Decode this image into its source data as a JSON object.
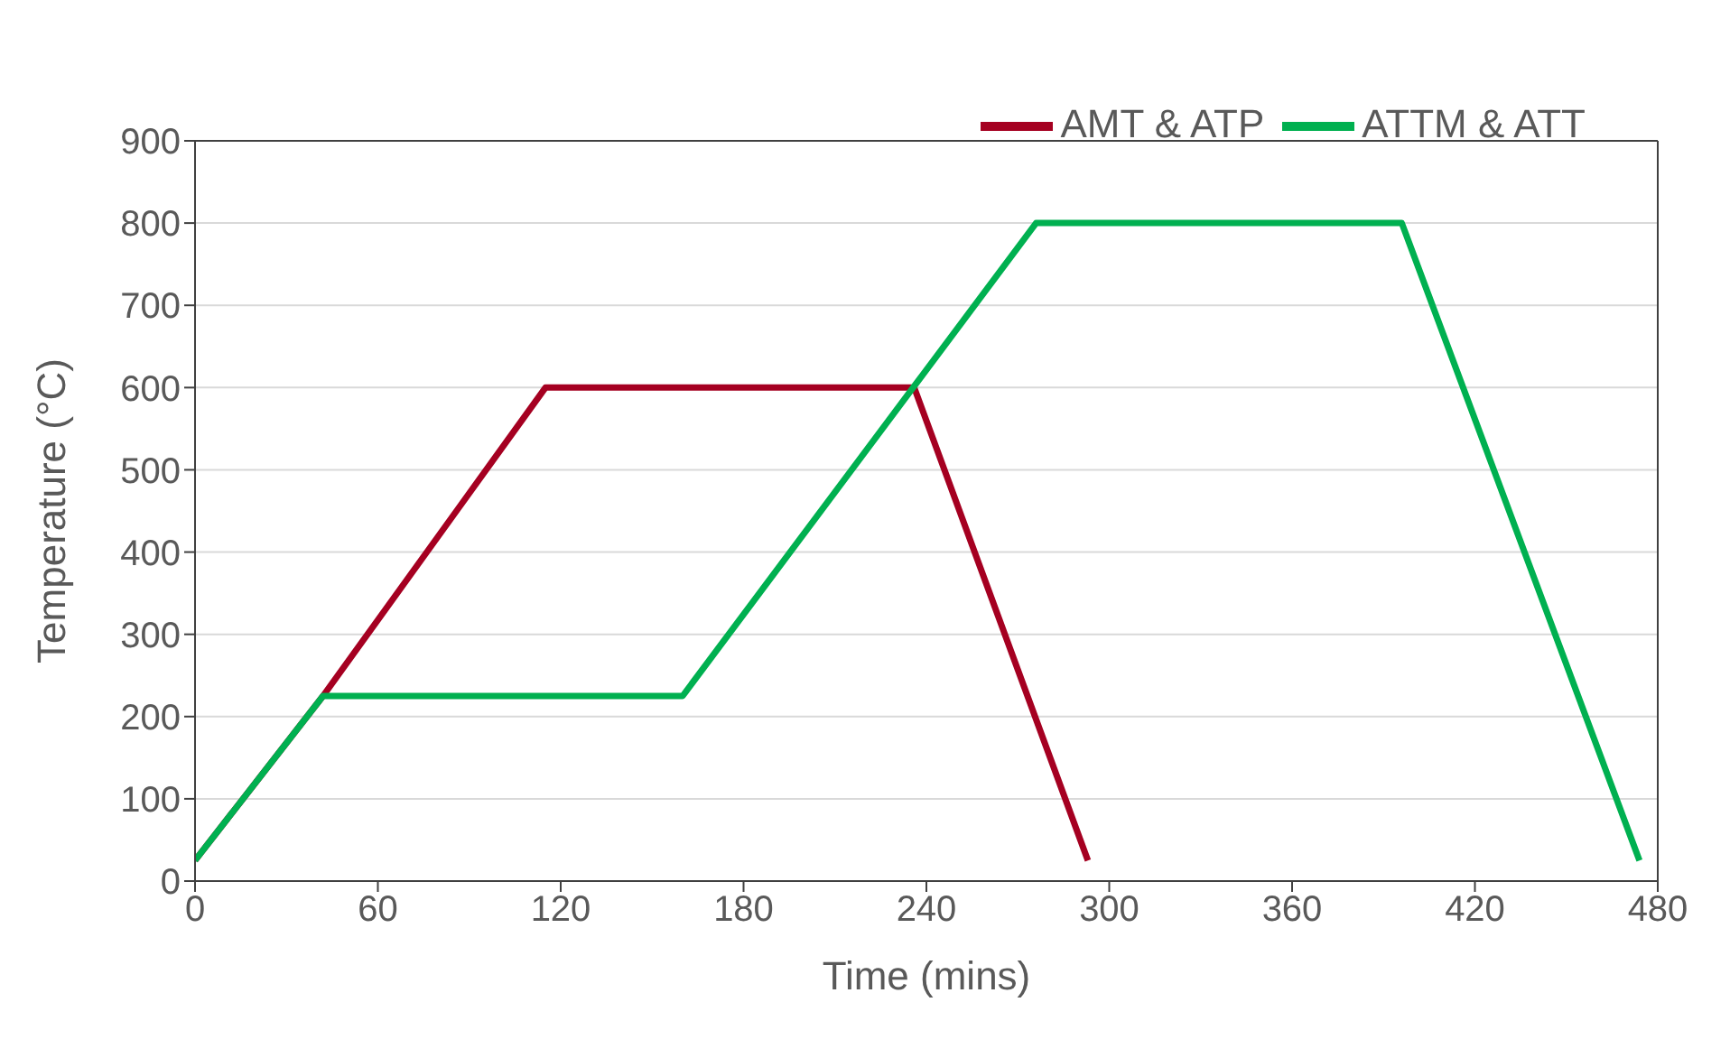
{
  "chart_data": {
    "type": "line",
    "xlabel": "Time (mins)",
    "ylabel": "Temperature (°C)",
    "xlim": [
      0,
      480
    ],
    "xticks": [
      0,
      60,
      120,
      180,
      240,
      300,
      360,
      420,
      480
    ],
    "ylim": [
      0,
      900
    ],
    "yticks": [
      0,
      100,
      200,
      300,
      400,
      500,
      600,
      700,
      800,
      900
    ],
    "grid": "y",
    "legend": "top right",
    "marker": "none",
    "line_style": "solid",
    "series": [
      {
        "name": "AMT & ATP",
        "color": "#a50021",
        "x": [
          0,
          42,
          115,
          236,
          293
        ],
        "values": [
          25,
          225,
          600,
          600,
          25
        ]
      },
      {
        "name": "ATTM & ATT",
        "color": "#00b050",
        "x": [
          0,
          42,
          160,
          276,
          396,
          474
        ],
        "values": [
          25,
          225,
          225,
          800,
          800,
          25
        ]
      }
    ]
  }
}
